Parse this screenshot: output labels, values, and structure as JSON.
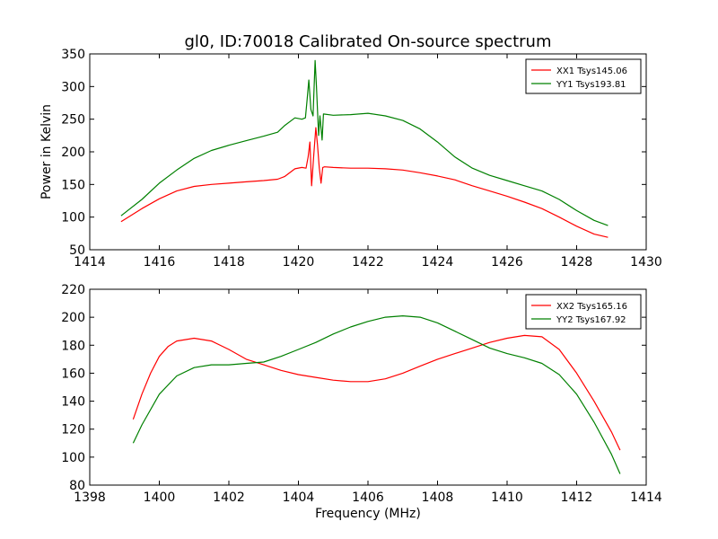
{
  "figure": {
    "title": "gl0, ID:70018 Calibrated On-source spectrum"
  },
  "chart_data": [
    {
      "type": "line",
      "title": "gl0, ID:70018 Calibrated On-source spectrum",
      "xlabel": "",
      "ylabel": "Power in Kelvin",
      "xlim": [
        1414,
        1430
      ],
      "ylim": [
        50,
        350
      ],
      "xticks": [
        1414,
        1416,
        1418,
        1420,
        1422,
        1424,
        1426,
        1428,
        1430
      ],
      "yticks": [
        50,
        100,
        150,
        200,
        250,
        300,
        350
      ],
      "grid": false,
      "legend_position": "top-right",
      "series": [
        {
          "name": "XX1 Tsys145.06",
          "color": "#ff0000",
          "x": [
            1414.9,
            1415.5,
            1416.0,
            1416.5,
            1417.0,
            1417.5,
            1418.0,
            1418.5,
            1419.0,
            1419.4,
            1419.6,
            1419.9,
            1420.1,
            1420.22,
            1420.28,
            1420.33,
            1420.38,
            1420.44,
            1420.5,
            1420.55,
            1420.6,
            1420.65,
            1420.7,
            1420.75,
            1421.0,
            1421.5,
            1422.0,
            1422.5,
            1423.0,
            1423.5,
            1424.0,
            1424.5,
            1425.0,
            1425.5,
            1426.0,
            1426.5,
            1427.0,
            1427.5,
            1428.0,
            1428.5,
            1428.9
          ],
          "values": [
            93,
            113,
            128,
            140,
            147,
            150,
            152,
            154,
            156,
            158,
            162,
            174,
            176,
            175,
            192,
            215,
            148,
            195,
            237,
            210,
            176,
            152,
            176,
            177,
            176,
            175,
            175,
            174,
            172,
            168,
            163,
            157,
            148,
            140,
            132,
            123,
            113,
            100,
            86,
            74,
            69
          ]
        },
        {
          "name": "YY1 Tsys193.81",
          "color": "#008000",
          "x": [
            1414.9,
            1415.5,
            1416.0,
            1416.5,
            1417.0,
            1417.5,
            1418.0,
            1418.5,
            1419.0,
            1419.4,
            1419.6,
            1419.9,
            1420.1,
            1420.2,
            1420.25,
            1420.3,
            1420.36,
            1420.42,
            1420.48,
            1420.52,
            1420.58,
            1420.62,
            1420.68,
            1420.72,
            1421.0,
            1421.5,
            1422.0,
            1422.5,
            1423.0,
            1423.5,
            1424.0,
            1424.5,
            1425.0,
            1425.5,
            1426.0,
            1426.5,
            1427.0,
            1427.5,
            1428.0,
            1428.5,
            1428.9
          ],
          "values": [
            102,
            127,
            152,
            172,
            190,
            202,
            210,
            217,
            224,
            230,
            240,
            252,
            250,
            252,
            280,
            310,
            265,
            255,
            340,
            300,
            225,
            255,
            218,
            258,
            256,
            257,
            259,
            255,
            248,
            235,
            215,
            192,
            175,
            164,
            156,
            148,
            140,
            127,
            110,
            95,
            87
          ]
        }
      ]
    },
    {
      "type": "line",
      "title": "",
      "xlabel": "Frequency (MHz)",
      "ylabel": "",
      "xlim": [
        1398,
        1414
      ],
      "ylim": [
        80,
        220
      ],
      "xticks": [
        1398,
        1400,
        1402,
        1404,
        1406,
        1408,
        1410,
        1412,
        1414
      ],
      "yticks": [
        80,
        100,
        120,
        140,
        160,
        180,
        200,
        220
      ],
      "grid": false,
      "legend_position": "top-right",
      "series": [
        {
          "name": "XX2 Tsys165.16",
          "color": "#ff0000",
          "x": [
            1399.25,
            1399.5,
            1399.75,
            1400.0,
            1400.25,
            1400.5,
            1401.0,
            1401.5,
            1402.0,
            1402.5,
            1403.0,
            1403.5,
            1404.0,
            1404.5,
            1405.0,
            1405.5,
            1406.0,
            1406.5,
            1407.0,
            1407.5,
            1408.0,
            1408.5,
            1409.0,
            1409.5,
            1410.0,
            1410.5,
            1411.0,
            1411.5,
            1412.0,
            1412.5,
            1413.0,
            1413.25
          ],
          "values": [
            127,
            145,
            160,
            172,
            179,
            183,
            185,
            183,
            177,
            170,
            166,
            162,
            159,
            157,
            155,
            154,
            154,
            156,
            160,
            165,
            170,
            174,
            178,
            182,
            185,
            187,
            186,
            177,
            160,
            140,
            118,
            105
          ]
        },
        {
          "name": "YY2 Tsys167.92",
          "color": "#008000",
          "x": [
            1399.25,
            1399.5,
            1400.0,
            1400.5,
            1401.0,
            1401.5,
            1402.0,
            1402.5,
            1403.0,
            1403.5,
            1404.0,
            1404.5,
            1405.0,
            1405.5,
            1406.0,
            1406.5,
            1407.0,
            1407.5,
            1408.0,
            1408.5,
            1409.0,
            1409.5,
            1410.0,
            1410.5,
            1411.0,
            1411.5,
            1412.0,
            1412.5,
            1413.0,
            1413.25
          ],
          "values": [
            110,
            123,
            145,
            158,
            164,
            166,
            166,
            167,
            168,
            172,
            177,
            182,
            188,
            193,
            197,
            200,
            201,
            200,
            196,
            190,
            184,
            178,
            174,
            171,
            167,
            159,
            145,
            125,
            102,
            88
          ]
        }
      ]
    }
  ]
}
